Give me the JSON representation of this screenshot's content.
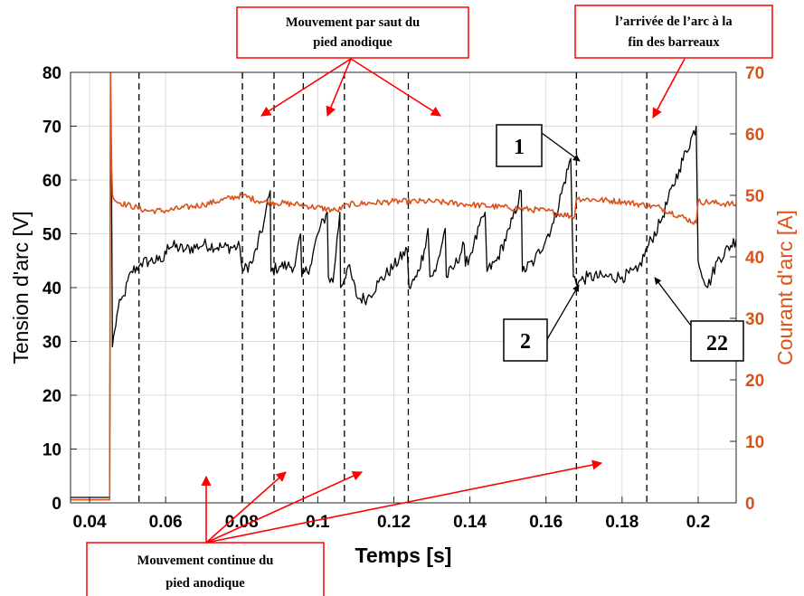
{
  "chart_data": {
    "type": "line",
    "xlabel": "Temps [s]",
    "ylabel_left": "Tension d'arc  [V]",
    "ylabel_right": "Courant d'arc [A]",
    "xlim": [
      0.035,
      0.21
    ],
    "ylim_left": [
      0,
      80
    ],
    "ylim_right": [
      0,
      70
    ],
    "x_ticks": [
      0.04,
      0.06,
      0.08,
      0.1,
      0.12,
      0.14,
      0.16,
      0.18,
      0.2
    ],
    "x_tick_labels": [
      "0.04",
      "0.06",
      "0.08",
      "0.1",
      "0.12",
      "0.14",
      "0.16",
      "0.18",
      "0.2"
    ],
    "y_left_ticks": [
      0,
      10,
      20,
      30,
      40,
      50,
      60,
      70,
      80
    ],
    "y_left_tick_labels": [
      "0",
      "10",
      "20",
      "30",
      "40",
      "50",
      "60",
      "70",
      "80"
    ],
    "y_right_ticks": [
      0,
      10,
      20,
      30,
      40,
      50,
      60,
      70
    ],
    "y_right_tick_labels": [
      "0",
      "10",
      "20",
      "30",
      "40",
      "50",
      "60",
      "70"
    ],
    "grid": true,
    "colors": {
      "voltage": "#000000",
      "current": "#d95319",
      "annotation": "#ff0000"
    },
    "series": [
      {
        "axis": "left",
        "x": [
          0.035,
          0.0453,
          0.0455,
          0.0458,
          0.046,
          0.0466,
          0.0475,
          0.049,
          0.051,
          0.053,
          0.0535,
          0.056,
          0.058,
          0.0595,
          0.0605,
          0.065,
          0.07,
          0.075,
          0.0795,
          0.0803,
          0.083,
          0.0858,
          0.0875,
          0.0877,
          0.09,
          0.092,
          0.094,
          0.0955,
          0.0958,
          0.098,
          0.1,
          0.1025,
          0.1028,
          0.104,
          0.1058,
          0.106,
          0.108,
          0.1105,
          0.113,
          0.116,
          0.12,
          0.1235,
          0.124,
          0.126,
          0.128,
          0.129,
          0.1295,
          0.131,
          0.1335,
          0.1338,
          0.136,
          0.1385,
          0.1388,
          0.141,
          0.144,
          0.1445,
          0.147,
          0.1505,
          0.1535,
          0.1538,
          0.157,
          0.162,
          0.1665,
          0.1672,
          0.1685,
          0.171,
          0.175,
          0.18,
          0.184,
          0.187,
          0.19,
          0.195,
          0.1995,
          0.2,
          0.2025,
          0.205,
          0.21
        ],
        "y": [
          1,
          1,
          78,
          58,
          29,
          32,
          36,
          38.5,
          43,
          44,
          44.5,
          45,
          45,
          45,
          48,
          47,
          48,
          47.5,
          47.5,
          43,
          45,
          52,
          58,
          43,
          44,
          44,
          44,
          50,
          42,
          44,
          50,
          54,
          42,
          41,
          54,
          40,
          44,
          38,
          38,
          41,
          44,
          47,
          40,
          42,
          47,
          51,
          42,
          43,
          51,
          42,
          44,
          48,
          44,
          48,
          54,
          43,
          45,
          51,
          58,
          43,
          45,
          52,
          64,
          42,
          41,
          42,
          42,
          42,
          43,
          48,
          52,
          62,
          70,
          45,
          40,
          45,
          49
        ],
        "noise": 1.2
      },
      {
        "axis": "right",
        "x": [
          0.035,
          0.0453,
          0.0455,
          0.0458,
          0.046,
          0.047,
          0.055,
          0.06,
          0.07,
          0.08,
          0.085,
          0.095,
          0.105,
          0.108,
          0.12,
          0.13,
          0.14,
          0.15,
          0.16,
          0.1675,
          0.168,
          0.18,
          0.19,
          0.1995,
          0.2,
          0.21
        ],
        "y": [
          0.5,
          0.5,
          70,
          55,
          50,
          49,
          47.5,
          47.5,
          48.5,
          50,
          49,
          48.5,
          47.5,
          48.5,
          49,
          49,
          48.5,
          48,
          47.5,
          46.5,
          49.5,
          49,
          48,
          45.5,
          49,
          48.5
        ],
        "noise": 0.5
      }
    ],
    "dashed_lines_x": [
      0.053,
      0.0802,
      0.0885,
      0.0962,
      0.107,
      0.1238,
      0.168,
      0.1865
    ],
    "callouts": [
      {
        "id": "saut",
        "lines": [
          "Mouvement par saut du",
          "pied anodique"
        ]
      },
      {
        "id": "arrivee",
        "lines": [
          "l’arrivée de l’arc à la",
          "fin des barreaux"
        ]
      },
      {
        "id": "continue",
        "lines": [
          "Mouvement continue du",
          "pied anodique"
        ]
      }
    ],
    "point_labels": [
      "1",
      "2",
      "22"
    ]
  }
}
